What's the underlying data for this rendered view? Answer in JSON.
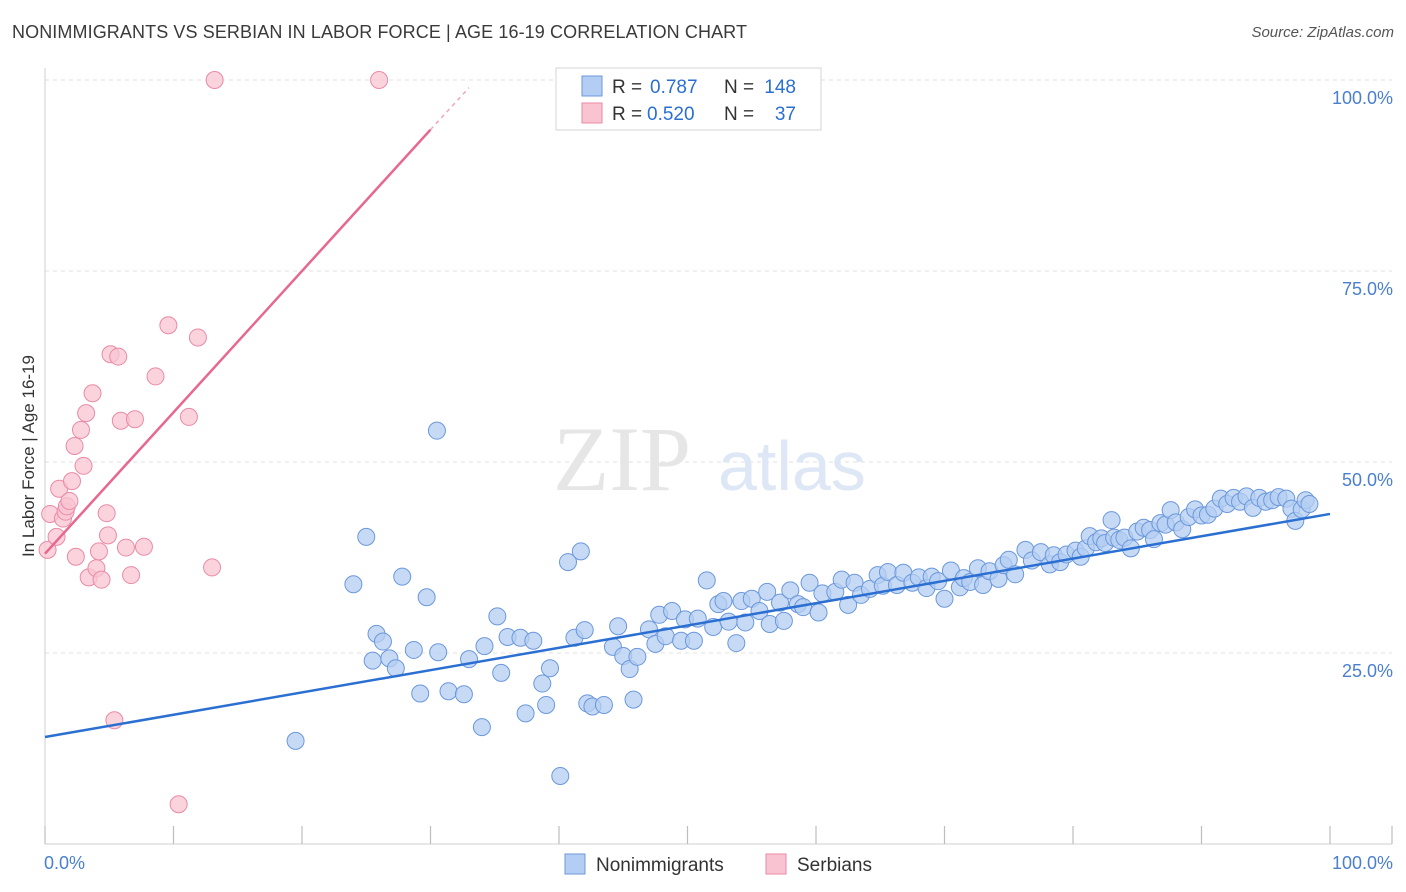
{
  "title": "NONIMMIGRANTS VS SERBIAN IN LABOR FORCE | AGE 16-19 CORRELATION CHART",
  "source": "Source: ZipAtlas.com",
  "watermark": {
    "zip": "ZIP",
    "atlas": "atlas"
  },
  "colors": {
    "blue_fill": "#b4cdf2",
    "blue_stroke": "#6b98dc",
    "blue_line": "#2a6fd1",
    "pink_fill": "#f8c4d2",
    "pink_stroke": "#ea8aa6",
    "pink_line": "#e8678f",
    "axis_label": "#4a7fd0",
    "grid": "#e2e2e2"
  },
  "legend_box": {
    "rows": [
      {
        "r_label": "R =",
        "r_value": "0.787",
        "n_label": "N =",
        "n_value": "148",
        "color": "blue"
      },
      {
        "r_label": "R =",
        "r_value": "0.520",
        "n_label": "N =",
        "n_value": "37",
        "color": "pink"
      }
    ]
  },
  "chart_data": {
    "type": "scatter",
    "title": "NONIMMIGRANTS VS SERBIAN IN LABOR FORCE | AGE 16-19 CORRELATION CHART",
    "xlabel": "",
    "ylabel": "In Labor Force | Age 16-19",
    "xlim": [
      0,
      100
    ],
    "ylim": [
      0,
      100
    ],
    "x_tick_labels": [
      "0.0%",
      "100.0%"
    ],
    "y_tick_labels": [
      "25.0%",
      "50.0%",
      "75.0%",
      "100.0%"
    ],
    "y_ticks": [
      25,
      50,
      75,
      100
    ],
    "grid": true,
    "legend_position": "bottom",
    "series": [
      {
        "name": "Nonimmigrants",
        "color": "blue",
        "trend": {
          "x": [
            0,
            100
          ],
          "y": [
            14.0,
            43.2
          ]
        },
        "points": [
          [
            19.5,
            13.5
          ],
          [
            24.0,
            34.0
          ],
          [
            25.0,
            40.2
          ],
          [
            30.5,
            54.1
          ],
          [
            25.5,
            24.0
          ],
          [
            25.8,
            27.5
          ],
          [
            26.3,
            26.5
          ],
          [
            26.8,
            24.3
          ],
          [
            27.3,
            23.0
          ],
          [
            27.8,
            35.0
          ],
          [
            28.7,
            25.4
          ],
          [
            29.2,
            19.7
          ],
          [
            29.7,
            32.3
          ],
          [
            30.6,
            25.1
          ],
          [
            31.4,
            20.0
          ],
          [
            32.6,
            19.6
          ],
          [
            33.0,
            24.2
          ],
          [
            34.0,
            15.3
          ],
          [
            34.2,
            25.9
          ],
          [
            35.2,
            29.8
          ],
          [
            35.5,
            22.4
          ],
          [
            36.0,
            27.1
          ],
          [
            37.0,
            27.0
          ],
          [
            37.4,
            17.1
          ],
          [
            38.0,
            26.6
          ],
          [
            38.7,
            21.0
          ],
          [
            39.0,
            18.2
          ],
          [
            39.3,
            23.0
          ],
          [
            40.1,
            8.9
          ],
          [
            40.7,
            36.9
          ],
          [
            41.2,
            27.0
          ],
          [
            41.7,
            38.3
          ],
          [
            42.0,
            28.0
          ],
          [
            42.2,
            18.4
          ],
          [
            42.6,
            18.0
          ],
          [
            43.5,
            18.2
          ],
          [
            44.2,
            25.8
          ],
          [
            44.6,
            28.5
          ],
          [
            45.0,
            24.6
          ],
          [
            45.5,
            22.9
          ],
          [
            45.8,
            18.9
          ],
          [
            46.1,
            24.5
          ],
          [
            47.0,
            28.1
          ],
          [
            47.5,
            26.2
          ],
          [
            47.8,
            30.0
          ],
          [
            48.3,
            27.2
          ],
          [
            48.8,
            30.5
          ],
          [
            49.5,
            26.6
          ],
          [
            49.8,
            29.4
          ],
          [
            50.5,
            26.6
          ],
          [
            50.8,
            29.5
          ],
          [
            51.5,
            34.5
          ],
          [
            52.0,
            28.4
          ],
          [
            52.4,
            31.4
          ],
          [
            52.8,
            31.8
          ],
          [
            53.2,
            29.1
          ],
          [
            53.8,
            26.3
          ],
          [
            54.2,
            31.8
          ],
          [
            54.5,
            29.0
          ],
          [
            55.0,
            32.1
          ],
          [
            55.6,
            30.5
          ],
          [
            56.2,
            33.0
          ],
          [
            56.4,
            28.8
          ],
          [
            57.2,
            31.6
          ],
          [
            57.5,
            29.2
          ],
          [
            58.0,
            33.2
          ],
          [
            58.6,
            31.4
          ],
          [
            59.0,
            31.0
          ],
          [
            59.5,
            34.2
          ],
          [
            60.2,
            30.3
          ],
          [
            60.5,
            32.8
          ],
          [
            61.5,
            33.0
          ],
          [
            62.0,
            34.6
          ],
          [
            62.5,
            31.3
          ],
          [
            63.0,
            34.2
          ],
          [
            63.5,
            32.6
          ],
          [
            64.2,
            33.4
          ],
          [
            64.8,
            35.2
          ],
          [
            65.2,
            33.8
          ],
          [
            65.6,
            35.6
          ],
          [
            66.3,
            33.9
          ],
          [
            66.8,
            35.5
          ],
          [
            67.5,
            34.2
          ],
          [
            68.0,
            34.9
          ],
          [
            68.6,
            33.5
          ],
          [
            69.0,
            35.0
          ],
          [
            69.5,
            34.4
          ],
          [
            70.0,
            32.1
          ],
          [
            70.5,
            35.8
          ],
          [
            71.2,
            33.6
          ],
          [
            71.5,
            34.8
          ],
          [
            72.0,
            34.3
          ],
          [
            72.6,
            36.1
          ],
          [
            73.0,
            33.9
          ],
          [
            73.5,
            35.7
          ],
          [
            74.2,
            34.7
          ],
          [
            74.6,
            36.5
          ],
          [
            75.0,
            37.2
          ],
          [
            75.5,
            35.3
          ],
          [
            76.3,
            38.5
          ],
          [
            76.8,
            37.1
          ],
          [
            77.5,
            38.2
          ],
          [
            78.2,
            36.6
          ],
          [
            78.5,
            37.8
          ],
          [
            79.0,
            36.9
          ],
          [
            79.5,
            37.9
          ],
          [
            80.2,
            38.4
          ],
          [
            80.6,
            37.6
          ],
          [
            81.0,
            38.7
          ],
          [
            81.3,
            40.3
          ],
          [
            81.8,
            39.5
          ],
          [
            82.2,
            40.0
          ],
          [
            82.5,
            39.4
          ],
          [
            83.0,
            42.4
          ],
          [
            83.2,
            40.1
          ],
          [
            83.6,
            39.8
          ],
          [
            84.0,
            40.1
          ],
          [
            84.5,
            38.7
          ],
          [
            85.0,
            40.9
          ],
          [
            85.5,
            41.4
          ],
          [
            86.0,
            41.1
          ],
          [
            86.3,
            39.9
          ],
          [
            86.8,
            42.0
          ],
          [
            87.2,
            41.8
          ],
          [
            87.6,
            43.7
          ],
          [
            88.0,
            42.1
          ],
          [
            88.5,
            41.2
          ],
          [
            89.0,
            42.8
          ],
          [
            89.5,
            43.8
          ],
          [
            90.0,
            43.0
          ],
          [
            90.5,
            43.1
          ],
          [
            91.0,
            43.9
          ],
          [
            91.5,
            45.2
          ],
          [
            92.0,
            44.5
          ],
          [
            92.5,
            45.3
          ],
          [
            93.0,
            44.8
          ],
          [
            93.5,
            45.5
          ],
          [
            94.0,
            44.0
          ],
          [
            94.5,
            45.3
          ],
          [
            95.0,
            44.8
          ],
          [
            95.5,
            45.0
          ],
          [
            96.0,
            45.4
          ],
          [
            96.6,
            45.2
          ],
          [
            97.0,
            43.9
          ],
          [
            97.3,
            42.3
          ],
          [
            97.8,
            43.8
          ],
          [
            98.1,
            45.0
          ],
          [
            98.4,
            44.5
          ]
        ]
      },
      {
        "name": "Serbians",
        "color": "pink",
        "trend": {
          "x": [
            0,
            30
          ],
          "y": [
            38.0,
            93.5
          ]
        },
        "trend_dashed": {
          "x": [
            30,
            33
          ],
          "y": [
            93.5,
            99.0
          ]
        },
        "points": [
          [
            0.2,
            38.5
          ],
          [
            0.4,
            43.2
          ],
          [
            0.9,
            40.2
          ],
          [
            1.1,
            46.5
          ],
          [
            1.4,
            42.6
          ],
          [
            1.6,
            43.5
          ],
          [
            1.7,
            44.2
          ],
          [
            1.9,
            44.9
          ],
          [
            2.1,
            47.5
          ],
          [
            2.3,
            52.1
          ],
          [
            2.4,
            37.6
          ],
          [
            2.8,
            54.2
          ],
          [
            3.0,
            49.5
          ],
          [
            3.2,
            56.4
          ],
          [
            3.4,
            34.9
          ],
          [
            3.7,
            59.0
          ],
          [
            4.0,
            36.1
          ],
          [
            4.2,
            38.3
          ],
          [
            4.4,
            34.6
          ],
          [
            4.8,
            43.3
          ],
          [
            4.9,
            40.4
          ],
          [
            5.1,
            64.1
          ],
          [
            5.4,
            16.2
          ],
          [
            5.7,
            63.8
          ],
          [
            5.9,
            55.4
          ],
          [
            6.3,
            38.8
          ],
          [
            6.7,
            35.2
          ],
          [
            7.0,
            55.6
          ],
          [
            7.7,
            38.9
          ],
          [
            8.6,
            61.2
          ],
          [
            9.6,
            67.9
          ],
          [
            10.4,
            5.2
          ],
          [
            11.2,
            55.9
          ],
          [
            11.9,
            66.3
          ],
          [
            13.0,
            36.2
          ],
          [
            13.2,
            100.0
          ],
          [
            26.0,
            100.0
          ]
        ]
      }
    ]
  }
}
